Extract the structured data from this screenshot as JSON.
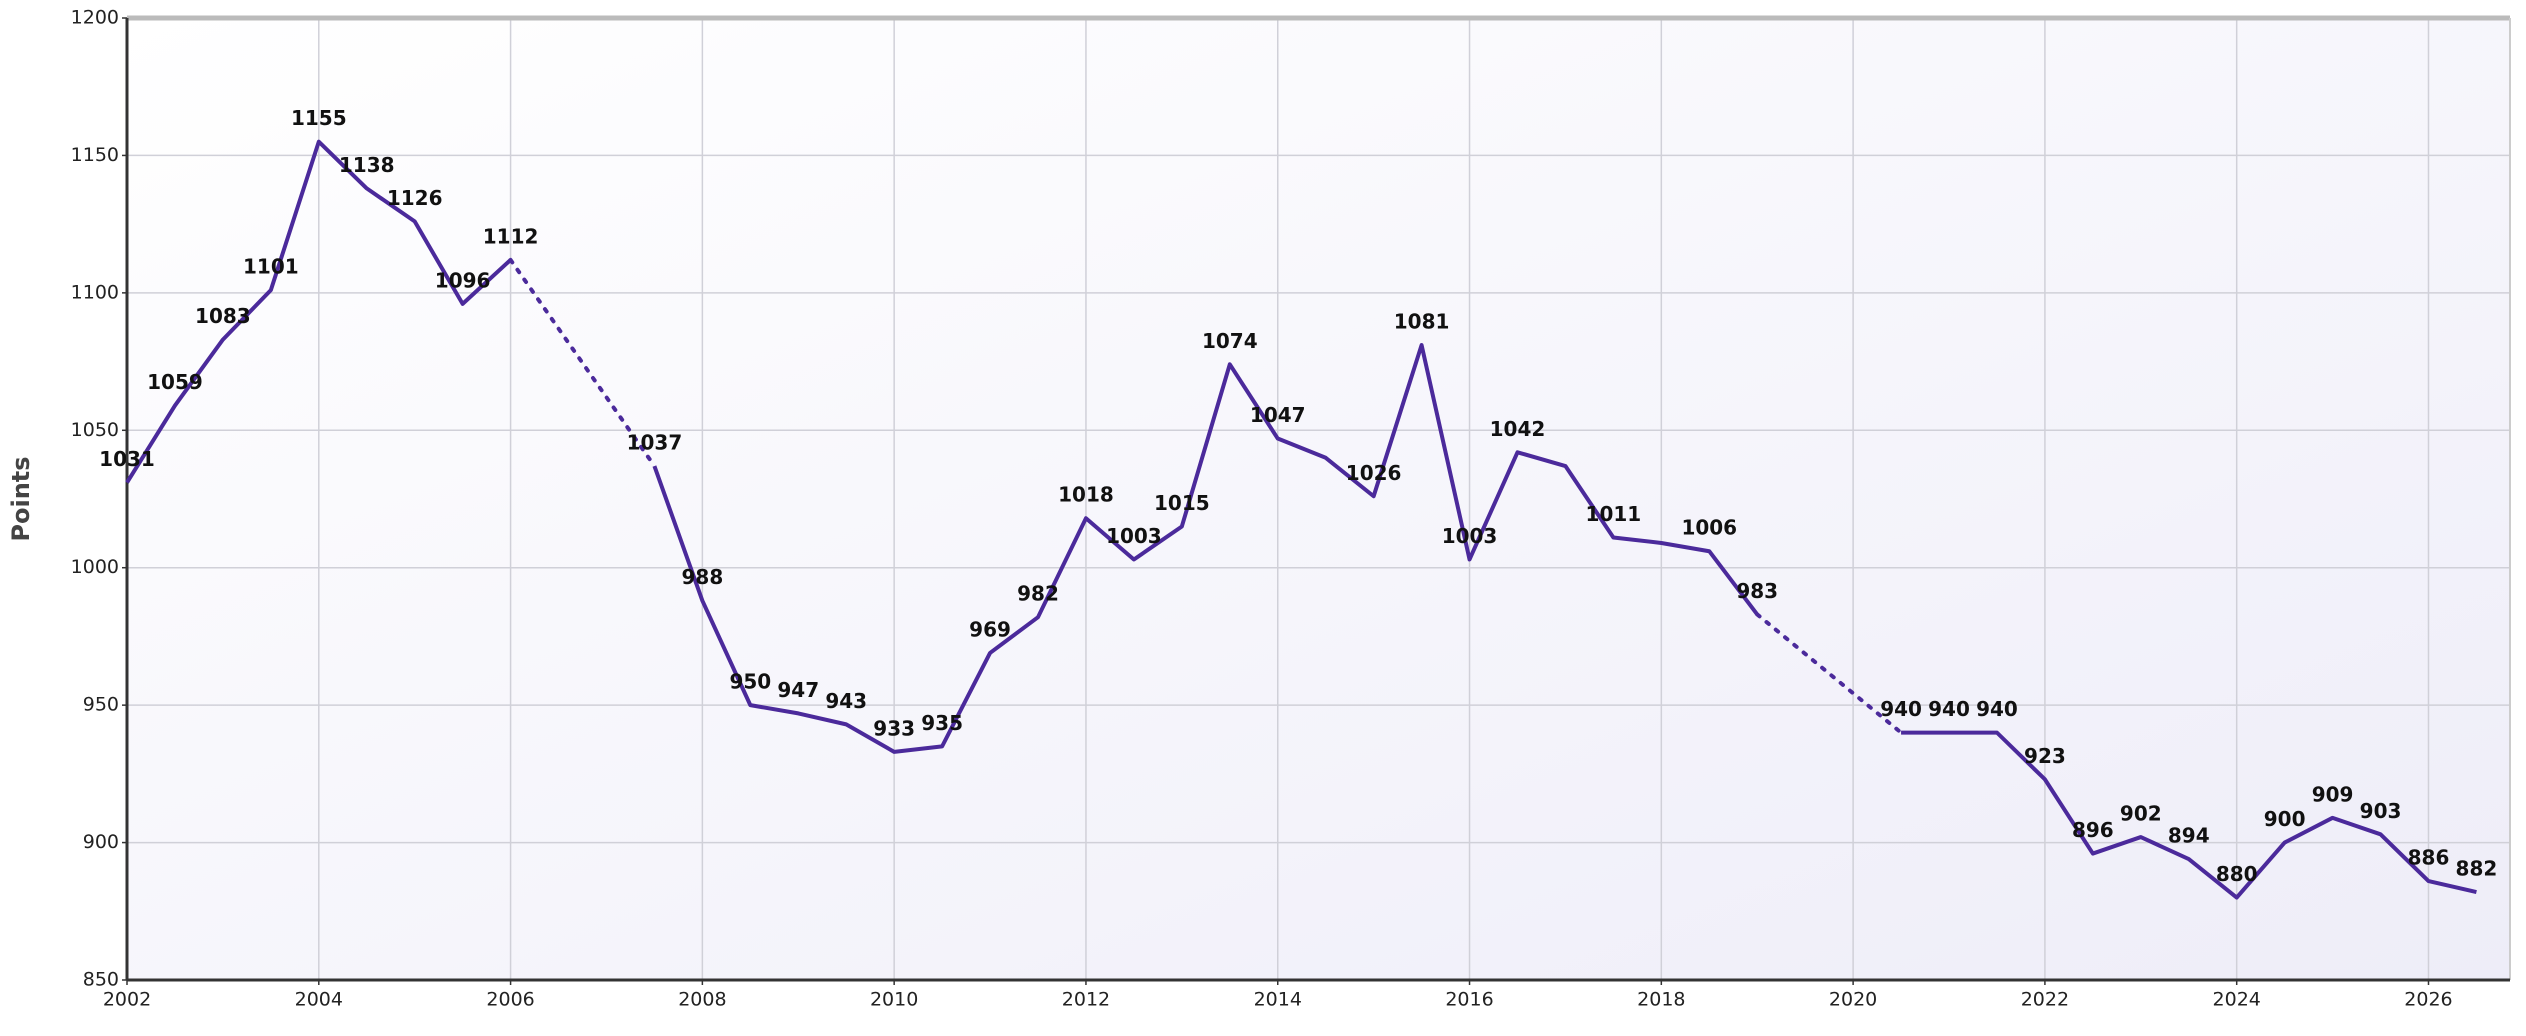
{
  "chart_data": {
    "type": "line",
    "y_label": "Points",
    "x": [
      2002,
      2002.5,
      2003,
      2003.5,
      2004,
      2004.5,
      2005,
      2005.5,
      2006,
      2006.5,
      2007,
      2007.5,
      2008,
      2008.5,
      2009,
      2009.5,
      2010,
      2010.5,
      2011,
      2011.5,
      2012,
      2012.5,
      2013,
      2013.5,
      2014,
      2014.5,
      2015,
      2015.5,
      2016,
      2016.5,
      2017,
      2017.5,
      2018,
      2018.5,
      2019,
      2019.5,
      2020,
      2020.5,
      2021,
      2021.5,
      2022,
      2022.5,
      2023,
      2023.5,
      2024,
      2024.5,
      2025,
      2025.5,
      2026,
      2026.5
    ],
    "values": [
      1031,
      1059,
      1083,
      1101,
      1155,
      1138,
      1126,
      1096,
      1112,
      null,
      null,
      1037,
      988,
      950,
      947,
      943,
      933,
      935,
      969,
      982,
      1018,
      1003,
      1015,
      1074,
      1047,
      1040,
      1026,
      1081,
      1003,
      1042,
      1037,
      1011,
      1009,
      1006,
      983,
      null,
      null,
      940,
      940,
      940,
      923,
      896,
      902,
      894,
      880,
      900,
      909,
      903,
      886,
      882
    ],
    "value_labels": [
      "1031",
      "1059",
      "1083",
      "1101",
      "1155",
      "1138",
      "1126",
      "1096",
      "1112",
      null,
      null,
      "1037",
      "988",
      "950",
      "947",
      "943",
      "933",
      "935",
      "969",
      "982",
      "1018",
      "1003",
      "1015",
      "1074",
      "1047",
      null,
      "1026",
      "1081",
      "1003",
      "1042",
      null,
      "1011",
      null,
      "1006",
      "983",
      null,
      null,
      "940",
      "940",
      "940",
      "923",
      "896",
      "902",
      "894",
      "880",
      "900",
      "909",
      "903",
      "886",
      "882"
    ],
    "color": "#4b2a9b",
    "xlim": [
      2002,
      2026.85
    ],
    "xticks": [
      2002,
      2004,
      2006,
      2008,
      2010,
      2012,
      2014,
      2016,
      2018,
      2020,
      2022,
      2024,
      2026
    ],
    "ylim": [
      850,
      1200
    ],
    "yticks": [
      850,
      900,
      950,
      1000,
      1050,
      1100,
      1150,
      1200
    ],
    "grid": true
  }
}
